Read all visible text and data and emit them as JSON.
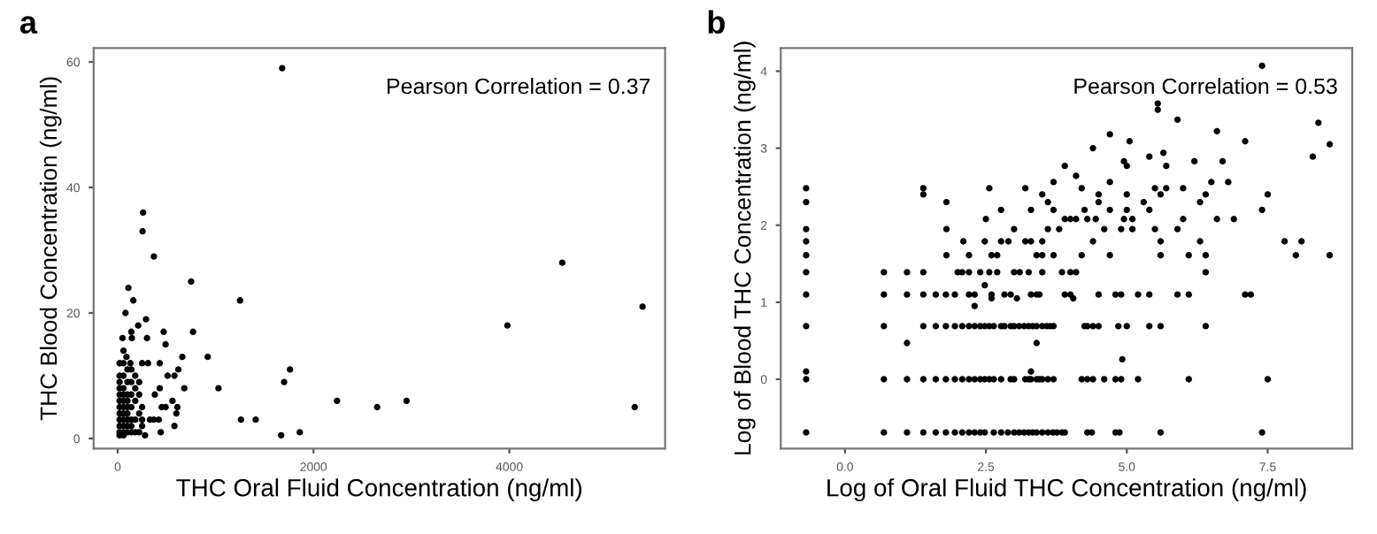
{
  "chart_data": [
    {
      "type": "scatter",
      "title": "a",
      "xlabel": "THC Oral Fluid Concentration (ng/ml)",
      "ylabel": "THC Blood Concentration (ng/ml)",
      "annotations": [
        "Pearson Correlation = 0.37"
      ],
      "xlim": [
        -245,
        5590
      ],
      "ylim": [
        -1.6,
        62.2
      ],
      "xticks": [
        0,
        2000,
        4000
      ],
      "yticks": [
        0,
        20,
        40,
        60
      ],
      "grid": false,
      "legend": false,
      "marker": "circle",
      "series": [
        {
          "color": "#000000",
          "x": [
            1680,
            260,
            255,
            370,
            750,
            110,
            160,
            1250,
            80,
            290,
            210,
            770,
            140,
            470,
            145,
            300,
            50,
            490,
            60,
            90,
            660,
            920,
            130,
            250,
            310,
            430,
            620,
            1760,
            1700,
            510,
            580,
            680,
            1030,
            430,
            2240,
            2650,
            2950,
            3980,
            4540,
            5360,
            5280,
            1260,
            1410,
            1670,
            1860,
            580,
            440,
            280,
            600,
            610,
            450,
            490,
            330,
            370,
            420,
            560,
            380,
            20,
            20,
            20,
            20,
            20,
            20,
            20,
            20,
            20,
            20,
            20,
            20,
            60,
            60,
            60,
            60,
            60,
            60,
            60,
            60,
            60,
            60,
            60,
            100,
            100,
            100,
            100,
            100,
            100,
            100,
            100,
            100,
            140,
            140,
            140,
            140,
            140,
            140,
            140,
            180,
            180,
            180,
            180,
            180,
            220,
            220,
            220,
            220,
            250,
            250,
            250
          ],
          "values": [
            59,
            36,
            33,
            29,
            25,
            24,
            22,
            22,
            20,
            19,
            18,
            17,
            17,
            17,
            16,
            16,
            16,
            15,
            14,
            13,
            13,
            13,
            12,
            12,
            12,
            12,
            11,
            11,
            9,
            10,
            10,
            8,
            8,
            8,
            6,
            5,
            6,
            18,
            28,
            21,
            5,
            3,
            3,
            0.5,
            1,
            2,
            1,
            0.5,
            4,
            5,
            5,
            5,
            3,
            3,
            3,
            6,
            7,
            0.5,
            1,
            2,
            3,
            4,
            5,
            6,
            7,
            8,
            9,
            10,
            12,
            0.5,
            1,
            2,
            3,
            4,
            5,
            6,
            7,
            8,
            10,
            12,
            1,
            2,
            3,
            4,
            5,
            6,
            7,
            9,
            11,
            1,
            2,
            3,
            5,
            7,
            9,
            11,
            1,
            3,
            6,
            8,
            10,
            1,
            4,
            7,
            9,
            2,
            5,
            3
          ]
        }
      ]
    },
    {
      "type": "scatter",
      "title": "b",
      "xlabel": "Log of Oral Fluid THC Concentration (ng/ml)",
      "ylabel": "Log of Blood THC Concentration (ng/ml)",
      "annotations": [
        "Pearson Correlation = 0.53"
      ],
      "xlim": [
        -1.14,
        9.0
      ],
      "ylim": [
        -0.9,
        4.3
      ],
      "xticks": [
        {
          "value": 0,
          "label": "0.0"
        },
        2.5,
        {
          "value": 5,
          "label": "5.0"
        },
        7.5
      ],
      "yticks": [
        0,
        1,
        2,
        3,
        4
      ],
      "grid": false,
      "legend": false,
      "marker": "circle",
      "series": [
        {
          "color": "#000000",
          "x": [
            -0.69,
            0.69,
            1.1,
            1.39,
            1.61,
            1.79,
            1.95,
            2.08,
            2.2,
            2.3,
            2.4,
            2.48,
            2.64,
            2.77,
            2.89,
            3.0,
            3.09,
            3.18,
            3.26,
            3.33,
            3.4,
            3.5,
            3.6,
            3.69,
            3.76,
            3.85,
            3.9,
            4.3,
            4.38,
            4.8,
            4.87,
            5.6,
            7.4,
            -0.69,
            0.69,
            1.1,
            1.39,
            1.61,
            1.79,
            1.95,
            2.08,
            2.2,
            2.3,
            2.4,
            2.48,
            2.56,
            2.64,
            2.77,
            2.94,
            3.0,
            3.2,
            3.26,
            3.3,
            3.4,
            3.45,
            3.5,
            3.6,
            3.7,
            4.2,
            4.3,
            4.4,
            4.6,
            4.8,
            4.9,
            5.2,
            6.1,
            7.5,
            -0.69,
            3.3,
            4.92,
            1.1,
            3.4,
            -0.69,
            0.69,
            1.39,
            1.61,
            1.79,
            1.95,
            2.08,
            2.2,
            2.3,
            2.4,
            2.48,
            2.56,
            2.64,
            2.77,
            2.83,
            2.94,
            3.0,
            3.09,
            3.18,
            3.26,
            3.33,
            3.4,
            3.5,
            3.58,
            3.64,
            3.7,
            4.25,
            4.3,
            4.4,
            4.5,
            4.85,
            5.0,
            5.4,
            5.6,
            6.4,
            -0.69,
            0.69,
            1.1,
            1.39,
            1.61,
            1.79,
            1.95,
            2.2,
            2.3,
            2.6,
            2.83,
            2.94,
            3.3,
            3.4,
            3.45,
            3.9,
            4.0,
            4.5,
            4.8,
            4.9,
            5.2,
            5.4,
            5.9,
            6.1,
            7.1,
            7.2,
            2.3,
            2.6,
            3.05,
            4.05,
            2.48,
            -0.69,
            0.69,
            1.1,
            1.39,
            2.0,
            2.08,
            2.2,
            2.4,
            2.56,
            2.7,
            3.0,
            3.1,
            3.26,
            3.5,
            3.85,
            4.0,
            4.1,
            6.4,
            -0.69,
            1.8,
            2.2,
            2.6,
            2.7,
            3.4,
            3.5,
            3.7,
            4.2,
            4.7,
            5.6,
            6.1,
            6.4,
            8.0,
            8.6,
            -0.69,
            2.1,
            2.48,
            2.77,
            2.9,
            3.2,
            3.3,
            3.5,
            4.4,
            5.6,
            6.3,
            7.8,
            8.1,
            -0.69,
            1.8,
            3.0,
            3.6,
            3.8,
            4.6,
            4.9,
            5.1,
            5.5,
            5.9,
            2.5,
            3.9,
            4.0,
            4.1,
            4.3,
            4.45,
            4.95,
            5.1,
            6.0,
            6.6,
            6.9,
            2.77,
            3.3,
            3.7,
            4.25,
            4.7,
            5.0,
            5.4,
            7.4,
            -0.69,
            1.8,
            3.6,
            4.5,
            5.3,
            6.3,
            1.39,
            3.5,
            4.5,
            5.0,
            5.6,
            6.4,
            7.5,
            -0.69,
            1.39,
            2.56,
            3.2,
            4.2,
            5.5,
            5.7,
            6.0,
            3.7,
            4.7,
            6.5,
            6.8,
            4.1,
            3.9,
            5.0,
            5.7,
            4.95,
            6.2,
            6.7,
            5.4,
            8.3,
            5.65,
            4.4,
            8.6,
            5.05,
            7.1,
            4.7,
            6.6,
            8.4,
            5.9,
            5.55,
            5.55,
            7.4
          ],
          "values": [
            -0.69,
            -0.69,
            -0.69,
            -0.69,
            -0.69,
            -0.69,
            -0.69,
            -0.69,
            -0.69,
            -0.69,
            -0.69,
            -0.69,
            -0.69,
            -0.69,
            -0.69,
            -0.69,
            -0.69,
            -0.69,
            -0.69,
            -0.69,
            -0.69,
            -0.69,
            -0.69,
            -0.69,
            -0.69,
            -0.69,
            -0.69,
            -0.69,
            -0.69,
            -0.69,
            -0.69,
            -0.69,
            -0.69,
            0,
            0,
            0,
            0,
            0,
            0,
            0,
            0,
            0,
            0,
            0,
            0,
            0,
            0,
            0,
            0,
            0,
            0,
            0,
            0,
            0,
            0,
            0,
            0,
            0,
            0,
            0,
            0,
            0,
            0,
            0,
            0,
            0,
            0,
            0.1,
            0.1,
            0.26,
            0.47,
            0.47,
            0.69,
            0.69,
            0.69,
            0.69,
            0.69,
            0.69,
            0.69,
            0.69,
            0.69,
            0.69,
            0.69,
            0.69,
            0.69,
            0.69,
            0.69,
            0.69,
            0.69,
            0.69,
            0.69,
            0.69,
            0.69,
            0.69,
            0.69,
            0.69,
            0.69,
            0.69,
            0.69,
            0.69,
            0.69,
            0.69,
            0.69,
            0.69,
            0.69,
            0.69,
            0.69,
            1.1,
            1.1,
            1.1,
            1.1,
            1.1,
            1.1,
            1.1,
            1.1,
            1.1,
            1.1,
            1.1,
            1.1,
            1.1,
            1.1,
            1.1,
            1.1,
            1.1,
            1.1,
            1.1,
            1.1,
            1.1,
            1.1,
            1.1,
            1.1,
            1.1,
            1.1,
            0.95,
            1.05,
            1.05,
            1.05,
            1.22,
            1.39,
            1.39,
            1.39,
            1.39,
            1.39,
            1.39,
            1.39,
            1.39,
            1.39,
            1.39,
            1.39,
            1.39,
            1.39,
            1.39,
            1.39,
            1.39,
            1.39,
            1.39,
            1.61,
            1.61,
            1.61,
            1.61,
            1.61,
            1.61,
            1.61,
            1.61,
            1.61,
            1.61,
            1.61,
            1.61,
            1.61,
            1.61,
            1.61,
            1.79,
            1.79,
            1.79,
            1.79,
            1.79,
            1.79,
            1.79,
            1.79,
            1.79,
            1.79,
            1.79,
            1.79,
            1.79,
            1.95,
            1.95,
            1.95,
            1.95,
            1.95,
            1.95,
            1.95,
            1.95,
            1.95,
            1.95,
            2.08,
            2.08,
            2.08,
            2.08,
            2.08,
            2.08,
            2.08,
            2.08,
            2.08,
            2.08,
            2.08,
            2.2,
            2.2,
            2.2,
            2.2,
            2.2,
            2.2,
            2.2,
            2.2,
            2.3,
            2.3,
            2.3,
            2.3,
            2.3,
            2.3,
            2.4,
            2.4,
            2.4,
            2.4,
            2.4,
            2.4,
            2.4,
            2.48,
            2.48,
            2.48,
            2.48,
            2.48,
            2.48,
            2.48,
            2.48,
            2.56,
            2.56,
            2.56,
            2.56,
            2.64,
            2.77,
            2.77,
            2.77,
            2.83,
            2.83,
            2.83,
            2.89,
            2.89,
            2.94,
            3.0,
            3.05,
            3.09,
            3.09,
            3.18,
            3.22,
            3.33,
            3.37,
            3.5,
            3.58,
            4.07
          ]
        }
      ]
    }
  ]
}
